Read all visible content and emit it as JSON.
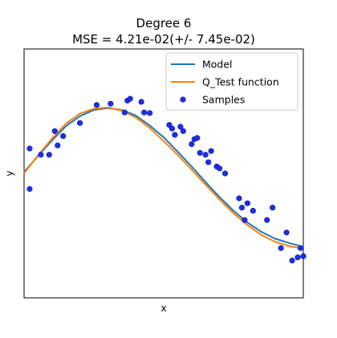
{
  "chart_data": {
    "type": "scatter",
    "title": "Degree 6",
    "subtitle": "MSE = 4.21e-02(+/- 7.45e-02)",
    "xlabel": "x",
    "ylabel": "y",
    "xlim": [
      0,
      1
    ],
    "ylim": [
      -2,
      2
    ],
    "xticks": [],
    "yticks": [],
    "grid": false,
    "legend_position": "top-right",
    "series": [
      {
        "name": "Model",
        "kind": "line",
        "color": "#1f77b4",
        "x": [
          0.0,
          0.05,
          0.1,
          0.15,
          0.2,
          0.25,
          0.3,
          0.35,
          0.4,
          0.45,
          0.5,
          0.55,
          0.6,
          0.65,
          0.7,
          0.75,
          0.8,
          0.85,
          0.9,
          0.95,
          1.0
        ],
        "values": [
          0.02,
          0.28,
          0.53,
          0.76,
          0.92,
          1.02,
          1.05,
          1.02,
          0.93,
          0.77,
          0.58,
          0.35,
          0.11,
          -0.14,
          -0.38,
          -0.6,
          -0.79,
          -0.94,
          -1.05,
          -1.12,
          -1.18
        ]
      },
      {
        "name": "Q_Test function",
        "kind": "line",
        "color": "#ff7f0e",
        "x": [
          0.0,
          0.05,
          0.1,
          0.15,
          0.2,
          0.25,
          0.3,
          0.35,
          0.4,
          0.45,
          0.5,
          0.55,
          0.6,
          0.65,
          0.7,
          0.75,
          0.8,
          0.85,
          0.9,
          0.95,
          1.0
        ],
        "values": [
          0.0,
          0.29,
          0.56,
          0.8,
          0.96,
          1.04,
          1.06,
          1.01,
          0.9,
          0.73,
          0.52,
          0.3,
          0.06,
          -0.18,
          -0.42,
          -0.64,
          -0.83,
          -0.99,
          -1.1,
          -1.17,
          -1.21
        ]
      },
      {
        "name": "Samples",
        "kind": "scatter",
        "color": "#1f2fe0",
        "points": [
          [
            0.02,
            0.4
          ],
          [
            0.02,
            -0.25
          ],
          [
            0.06,
            0.3
          ],
          [
            0.09,
            0.3
          ],
          [
            0.11,
            0.68
          ],
          [
            0.12,
            0.45
          ],
          [
            0.14,
            0.6
          ],
          [
            0.2,
            0.81
          ],
          [
            0.26,
            1.1
          ],
          [
            0.31,
            1.12
          ],
          [
            0.36,
            0.98
          ],
          [
            0.37,
            1.17
          ],
          [
            0.38,
            1.2
          ],
          [
            0.42,
            1.15
          ],
          [
            0.43,
            0.98
          ],
          [
            0.45,
            0.97
          ],
          [
            0.52,
            0.78
          ],
          [
            0.53,
            0.72
          ],
          [
            0.54,
            0.62
          ],
          [
            0.56,
            0.75
          ],
          [
            0.57,
            0.68
          ],
          [
            0.6,
            0.47
          ],
          [
            0.61,
            0.55
          ],
          [
            0.62,
            0.57
          ],
          [
            0.63,
            0.33
          ],
          [
            0.65,
            0.3
          ],
          [
            0.66,
            0.18
          ],
          [
            0.67,
            0.36
          ],
          [
            0.69,
            0.11
          ],
          [
            0.7,
            0.08
          ],
          [
            0.72,
            0.0
          ],
          [
            0.77,
            -0.4
          ],
          [
            0.78,
            -0.55
          ],
          [
            0.79,
            -0.75
          ],
          [
            0.8,
            -0.48
          ],
          [
            0.82,
            -0.6
          ],
          [
            0.87,
            -0.75
          ],
          [
            0.89,
            -0.55
          ],
          [
            0.92,
            -1.2
          ],
          [
            0.94,
            -0.95
          ],
          [
            0.96,
            -1.4
          ],
          [
            0.98,
            -1.35
          ],
          [
            0.99,
            -1.2
          ],
          [
            1.0,
            -1.33
          ]
        ]
      }
    ]
  }
}
